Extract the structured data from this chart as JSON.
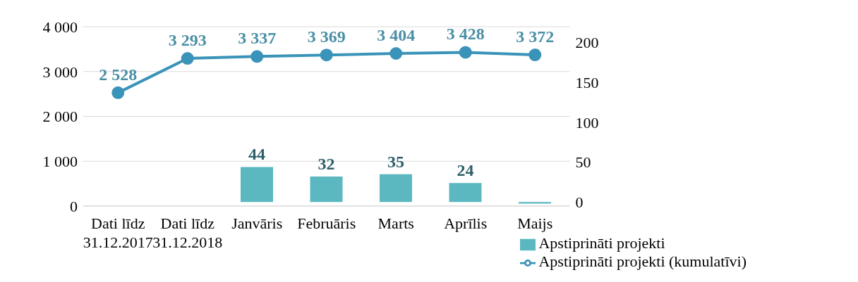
{
  "chart_data": {
    "type": "bar",
    "categories": [
      "Dati līdz 31.12.2017",
      "Dati līdz 31.12.2018",
      "Janvāris",
      "Februāris",
      "Marts",
      "Aprīlis",
      "Maijs"
    ],
    "series": [
      {
        "name": "Apstiprināti projekti",
        "axis": "y2",
        "color": "#5bb8c0",
        "values": [
          null,
          null,
          44,
          32,
          35,
          24,
          -2
        ],
        "value_labels": [
          null,
          null,
          "44",
          "32",
          "35",
          "24",
          null
        ]
      },
      {
        "name": "Apstiprināti projekti (kumulatīvi)",
        "type": "line",
        "color": "#3a93b8",
        "values": [
          2528,
          3293,
          3337,
          3369,
          3404,
          3428,
          3372
        ],
        "value_labels": [
          "2 528",
          "3 293",
          "3 337",
          "3 369",
          "3 404",
          "3 428",
          "3 372"
        ]
      }
    ],
    "ylim": [
      0,
      4000
    ],
    "yticks": [
      {
        "value": 0,
        "label": "0"
      },
      {
        "value": 1000,
        "label": "1 000"
      },
      {
        "value": 2000,
        "label": "2 000"
      },
      {
        "value": 3000,
        "label": "3 000"
      },
      {
        "value": 4000,
        "label": "4 000"
      }
    ],
    "y2lim": [
      -5,
      220
    ],
    "y2ticks": [
      0,
      50,
      100,
      150,
      200
    ],
    "grid": "y",
    "legend": "bottom right",
    "marker": "circle",
    "line_style": "solid"
  }
}
